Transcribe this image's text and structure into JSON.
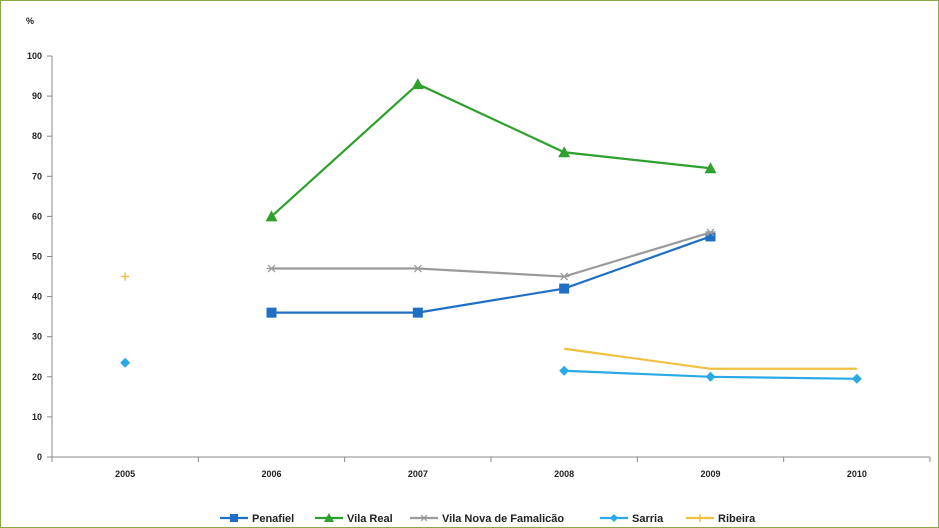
{
  "chart_data": {
    "type": "line",
    "title": "",
    "xlabel": "",
    "ylabel": "%",
    "ylim": [
      0,
      100
    ],
    "y_ticks": [
      "0",
      "10",
      "20",
      "30",
      "40",
      "50",
      "60",
      "70",
      "80",
      "90",
      "100"
    ],
    "categories": [
      "2005",
      "2006",
      "2007",
      "2008",
      "2009",
      "2010"
    ],
    "grid": false,
    "legend_position": "bottom",
    "series": [
      {
        "name": "Penafiel",
        "color": "#1f6fc5",
        "marker": "square",
        "values": [
          null,
          36,
          36,
          42,
          55,
          null
        ]
      },
      {
        "name": "Vila Real",
        "color": "#2ea02e",
        "marker": "triangle",
        "values": [
          null,
          60,
          93,
          76,
          72,
          null
        ]
      },
      {
        "name": "Vila Nova de Famalicão",
        "color": "#9a9a9a",
        "marker": "star",
        "values": [
          null,
          47,
          47,
          45,
          56,
          null
        ]
      },
      {
        "name": "Sarria",
        "color": "#29a9e6",
        "marker": "diamond",
        "values": [
          23.5,
          null,
          null,
          21.5,
          20,
          19.5
        ]
      },
      {
        "name": "Ribeira",
        "color": "#f2c040",
        "marker": "plus",
        "values": [
          45,
          null,
          null,
          27,
          22,
          22
        ]
      }
    ]
  }
}
